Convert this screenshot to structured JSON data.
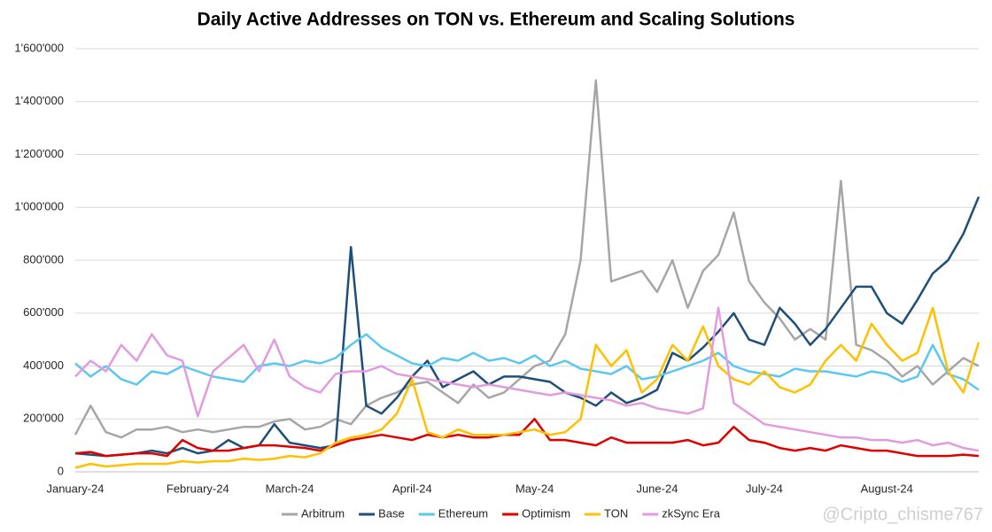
{
  "chart_data": {
    "type": "line",
    "title": "Daily Active Addresses on TON vs. Ethereum and Scaling Solutions",
    "watermark": "@Cripto_chisme767",
    "categories": [
      "January-24",
      null,
      null,
      null,
      null,
      null,
      null,
      null,
      "February-24",
      null,
      null,
      null,
      null,
      null,
      "March-24",
      null,
      null,
      null,
      null,
      null,
      null,
      null,
      "April-24",
      null,
      null,
      null,
      null,
      null,
      null,
      null,
      "May-24",
      null,
      null,
      null,
      null,
      null,
      null,
      null,
      "June-24",
      null,
      null,
      null,
      null,
      null,
      null,
      "July-24",
      null,
      null,
      null,
      null,
      null,
      null,
      null,
      "August-24",
      null,
      null,
      null,
      null,
      null,
      null
    ],
    "ylim": [
      0,
      1600000
    ],
    "yticks": [
      0,
      {
        "value": 200000,
        "label": "200'000"
      },
      {
        "value": 400000,
        "label": "400'000"
      },
      {
        "value": 600000,
        "label": "600'000"
      },
      {
        "value": 800000,
        "label": "800'000"
      },
      {
        "value": 1000000,
        "label": "1'000'000"
      },
      {
        "value": 1200000,
        "label": "1'200'000"
      },
      {
        "value": 1400000,
        "label": "1'400'000"
      },
      {
        "value": 1600000,
        "label": "1'600'000"
      }
    ],
    "grid": true,
    "legend": "bottom",
    "series": [
      {
        "name": "Arbitrum",
        "color": "#a6a6a6",
        "values": [
          140000,
          250000,
          150000,
          130000,
          160000,
          160000,
          170000,
          150000,
          160000,
          150000,
          160000,
          170000,
          170000,
          190000,
          200000,
          160000,
          170000,
          200000,
          180000,
          250000,
          280000,
          300000,
          330000,
          340000,
          300000,
          260000,
          330000,
          280000,
          300000,
          350000,
          400000,
          420000,
          520000,
          800000,
          1480000,
          720000,
          740000,
          760000,
          680000,
          800000,
          620000,
          760000,
          820000,
          980000,
          720000,
          640000,
          580000,
          500000,
          540000,
          500000,
          1100000,
          480000,
          460000,
          420000,
          360000,
          400000,
          330000,
          380000,
          430000,
          400000
        ]
      },
      {
        "name": "Base",
        "color": "#1f4e79",
        "values": [
          70000,
          65000,
          60000,
          65000,
          70000,
          80000,
          70000,
          90000,
          70000,
          80000,
          120000,
          90000,
          100000,
          180000,
          110000,
          100000,
          90000,
          100000,
          850000,
          250000,
          220000,
          280000,
          360000,
          420000,
          320000,
          350000,
          380000,
          330000,
          360000,
          360000,
          350000,
          340000,
          300000,
          280000,
          250000,
          300000,
          260000,
          280000,
          310000,
          450000,
          420000,
          470000,
          530000,
          600000,
          500000,
          480000,
          620000,
          560000,
          480000,
          540000,
          620000,
          700000,
          700000,
          600000,
          560000,
          650000,
          750000,
          800000,
          900000,
          1040000
        ]
      },
      {
        "name": "Ethereum",
        "color": "#5ac8f0",
        "values": [
          410000,
          360000,
          400000,
          350000,
          330000,
          380000,
          370000,
          400000,
          380000,
          360000,
          350000,
          340000,
          400000,
          410000,
          400000,
          420000,
          410000,
          430000,
          480000,
          520000,
          470000,
          440000,
          410000,
          400000,
          430000,
          420000,
          450000,
          420000,
          430000,
          410000,
          440000,
          400000,
          420000,
          390000,
          380000,
          370000,
          400000,
          350000,
          360000,
          380000,
          400000,
          420000,
          450000,
          400000,
          380000,
          370000,
          360000,
          390000,
          380000,
          380000,
          370000,
          360000,
          380000,
          370000,
          340000,
          360000,
          480000,
          370000,
          350000,
          310000
        ]
      },
      {
        "name": "Optimism",
        "color": "#e00000",
        "values": [
          70000,
          75000,
          60000,
          65000,
          70000,
          70000,
          60000,
          120000,
          90000,
          80000,
          80000,
          90000,
          100000,
          100000,
          95000,
          90000,
          80000,
          100000,
          120000,
          130000,
          140000,
          130000,
          120000,
          140000,
          130000,
          140000,
          130000,
          130000,
          140000,
          140000,
          200000,
          120000,
          120000,
          110000,
          100000,
          130000,
          110000,
          110000,
          110000,
          110000,
          120000,
          100000,
          110000,
          170000,
          120000,
          110000,
          90000,
          80000,
          90000,
          80000,
          100000,
          90000,
          80000,
          80000,
          70000,
          60000,
          60000,
          60000,
          65000,
          60000
        ]
      },
      {
        "name": "TON",
        "color": "#ffc000",
        "values": [
          15000,
          30000,
          20000,
          25000,
          30000,
          30000,
          30000,
          40000,
          35000,
          40000,
          40000,
          50000,
          45000,
          50000,
          60000,
          55000,
          70000,
          110000,
          130000,
          140000,
          160000,
          220000,
          350000,
          150000,
          130000,
          160000,
          140000,
          140000,
          140000,
          150000,
          160000,
          140000,
          150000,
          200000,
          480000,
          400000,
          460000,
          300000,
          350000,
          480000,
          420000,
          550000,
          400000,
          350000,
          330000,
          380000,
          320000,
          300000,
          330000,
          420000,
          480000,
          420000,
          560000,
          480000,
          420000,
          450000,
          620000,
          380000,
          300000,
          490000
        ]
      },
      {
        "name": "zkSync Era",
        "color": "#e39be0",
        "values": [
          360000,
          420000,
          380000,
          480000,
          420000,
          520000,
          440000,
          420000,
          210000,
          380000,
          430000,
          480000,
          380000,
          500000,
          360000,
          320000,
          300000,
          370000,
          380000,
          380000,
          400000,
          370000,
          360000,
          350000,
          340000,
          330000,
          320000,
          330000,
          320000,
          310000,
          300000,
          290000,
          300000,
          290000,
          280000,
          270000,
          250000,
          260000,
          240000,
          230000,
          220000,
          240000,
          620000,
          260000,
          220000,
          180000,
          170000,
          160000,
          150000,
          140000,
          130000,
          130000,
          120000,
          120000,
          110000,
          120000,
          100000,
          110000,
          90000,
          80000
        ]
      }
    ]
  }
}
